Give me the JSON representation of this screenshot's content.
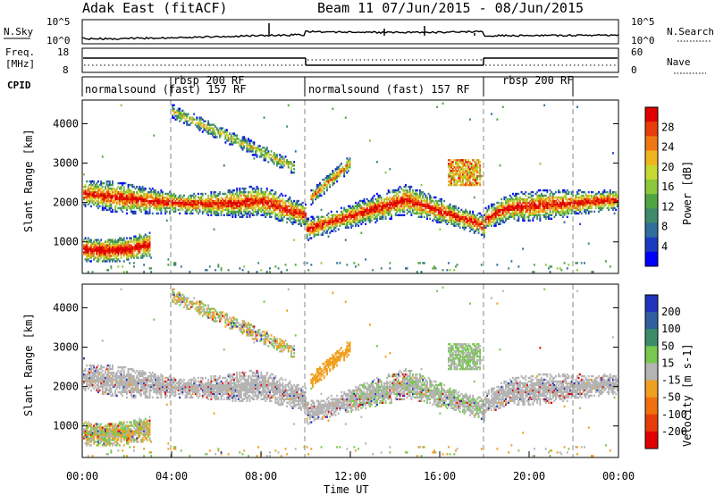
{
  "header": {
    "station_title": "Adak East (fitACF)",
    "beam_title": "Beam 11  07/Jun/2015 - 08/Jun/2015"
  },
  "noise_panel": {
    "left_label": "N.Sky",
    "right_label": "N.Search",
    "left_ticks": [
      "10^5",
      "10^0"
    ],
    "right_ticks": [
      "10^5",
      "10^0"
    ]
  },
  "freq_panel": {
    "left_label_line1": "Freq.",
    "left_label_line2": "[MHz]",
    "right_label": "Nave",
    "left_ticks": [
      "18",
      "8"
    ],
    "right_ticks": [
      "60",
      "0"
    ]
  },
  "cpid": {
    "label": "CPID",
    "segments": [
      {
        "label": "normalsound (fast) 157 RF",
        "start_hour": 0,
        "end_hour": 4
      },
      {
        "label": "rbsp 200 RF",
        "start_hour": 4,
        "end_hour": 10
      },
      {
        "label": "normalsound (fast) 157 RF",
        "start_hour": 10,
        "end_hour": 18
      },
      {
        "label": "rbsp 200 RF",
        "start_hour": 18,
        "end_hour": 22
      }
    ]
  },
  "chart_data": [
    {
      "type": "heatmap",
      "xlabel": "",
      "ylabel": "Slant Range [km]",
      "xlim": [
        0,
        24
      ],
      "ylim": [
        200,
        4600
      ],
      "yticks": [
        "4000",
        "3000",
        "2000",
        "1000"
      ],
      "colorbar_label": "Power [dB]",
      "colorbar_ticks": [
        "28",
        "24",
        "20",
        "16",
        "12",
        "8",
        "4"
      ],
      "colorbar_colors": [
        "#0000ff",
        "#1a3bc0",
        "#2f6e9c",
        "#3f8a6c",
        "#4fa540",
        "#8cc83c",
        "#c8d832",
        "#f0b41e",
        "#f07814",
        "#e83c0a",
        "#e00000"
      ]
    },
    {
      "type": "heatmap",
      "xlabel": "Time UT",
      "ylabel": "Slant Range [km]",
      "xlim": [
        0,
        24
      ],
      "ylim": [
        200,
        4600
      ],
      "yticks": [
        "4000",
        "3000",
        "2000",
        "1000"
      ],
      "xticks": [
        "00:00",
        "04:00",
        "08:00",
        "12:00",
        "16:00",
        "20:00",
        "00:00"
      ],
      "colorbar_label": "Velocity [m s-1]",
      "colorbar_ticks": [
        "200",
        "100",
        "50",
        "15",
        "-15",
        "-50",
        "-100",
        "-200"
      ],
      "colorbar_colors": [
        "#2233bb",
        "#2f5fa0",
        "#3c8c6a",
        "#78c850",
        "#b4b4b4",
        "#f0a020",
        "#f07010",
        "#e83c08",
        "#e00000"
      ]
    }
  ]
}
